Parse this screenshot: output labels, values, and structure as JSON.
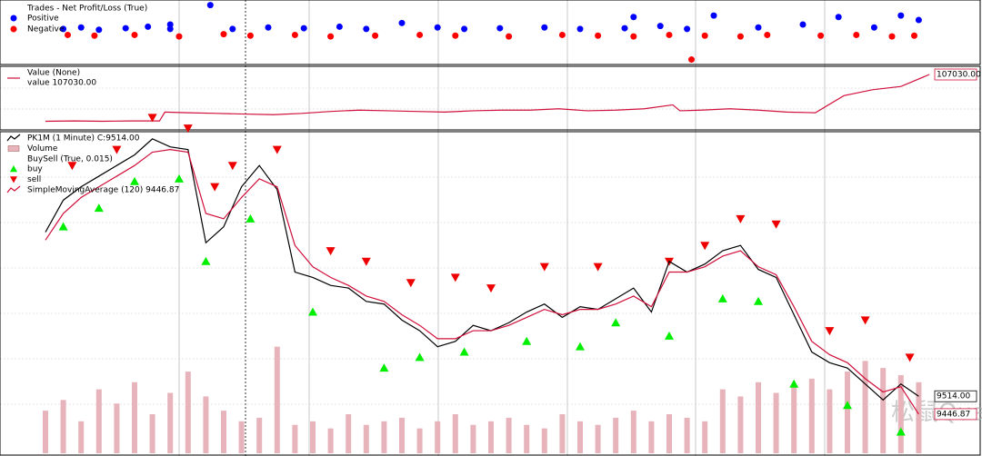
{
  "chart_data": [
    {
      "type": "scatter",
      "legend_title": "Trades - Net Profit/Loss (True)",
      "xlim": [
        0,
        1000
      ],
      "ylim": [
        -190,
        200
      ],
      "series": [
        {
          "name": "Positive",
          "color": "#0000ff",
          "x": [
            20,
            40,
            60,
            90,
            115,
            140,
            140,
            185,
            210,
            250,
            290,
            330,
            360,
            400,
            440,
            470,
            510,
            560,
            600,
            650,
            660,
            690,
            720,
            750,
            800,
            850,
            890,
            930,
            960,
            980
          ],
          "values": [
            30,
            40,
            25,
            35,
            45,
            30,
            60,
            190,
            30,
            40,
            35,
            45,
            30,
            70,
            40,
            30,
            35,
            40,
            30,
            35,
            110,
            50,
            30,
            120,
            40,
            60,
            110,
            40,
            120,
            90
          ]
        },
        {
          "name": "Negative",
          "color": "#ff0000",
          "x": [
            25,
            55,
            100,
            150,
            200,
            230,
            280,
            320,
            370,
            420,
            460,
            520,
            580,
            620,
            660,
            700,
            725,
            740,
            780,
            810,
            870,
            910,
            950,
            975
          ],
          "values": [
            -10,
            -15,
            -10,
            -20,
            -5,
            -15,
            -10,
            -20,
            -15,
            -10,
            -15,
            -20,
            -10,
            -15,
            -20,
            -10,
            -175,
            -15,
            -20,
            -10,
            -15,
            -10,
            -20,
            -15
          ]
        }
      ]
    },
    {
      "type": "line",
      "legend_title": "Value (None)",
      "legend_value": "value 107030.00",
      "value_label": "107030.00",
      "xlim": [
        0,
        1000
      ],
      "ylim": [
        99000,
        108000
      ],
      "series": [
        {
          "name": "value",
          "color": "#d0103a",
          "x": [
            0,
            32,
            64,
            96,
            128,
            134,
            160,
            192,
            224,
            256,
            288,
            320,
            352,
            384,
            416,
            448,
            480,
            512,
            544,
            576,
            608,
            640,
            672,
            704,
            712,
            736,
            768,
            800,
            832,
            864,
            896,
            928,
            960,
            992
          ],
          "values": [
            99900,
            99950,
            99900,
            99950,
            99950,
            101300,
            101200,
            101100,
            101000,
            100900,
            101100,
            101400,
            101600,
            101500,
            101400,
            101300,
            101500,
            101600,
            101600,
            101800,
            101500,
            101600,
            101800,
            102400,
            101500,
            101600,
            101800,
            101600,
            101300,
            101200,
            103800,
            104700,
            105200,
            107030
          ]
        }
      ]
    },
    {
      "type": "line",
      "xlim": [
        0,
        1000
      ],
      "ylim": [
        9300,
        10500
      ],
      "y2lim": [
        0,
        900
      ],
      "watermark": "松鼠Quant",
      "series": [
        {
          "name": "PK1M (1 Minute) C:9514.00",
          "color": "#000000",
          "last_label": "9514.00",
          "x": [
            0,
            20,
            40,
            60,
            80,
            100,
            120,
            140,
            160,
            180,
            200,
            220,
            240,
            260,
            280,
            300,
            320,
            340,
            360,
            380,
            400,
            420,
            440,
            460,
            480,
            500,
            520,
            540,
            560,
            580,
            600,
            620,
            640,
            660,
            680,
            700,
            720,
            740,
            760,
            780,
            800,
            820,
            840,
            860,
            880,
            900,
            920,
            940,
            960,
            980
          ],
          "values": [
            10130,
            10250,
            10300,
            10340,
            10380,
            10420,
            10480,
            10450,
            10440,
            10090,
            10150,
            10300,
            10380,
            10290,
            9980,
            9960,
            9930,
            9920,
            9870,
            9860,
            9800,
            9760,
            9700,
            9720,
            9780,
            9760,
            9790,
            9830,
            9860,
            9810,
            9850,
            9840,
            9880,
            9920,
            9830,
            10020,
            9980,
            10010,
            10060,
            10080,
            9990,
            9960,
            9820,
            9680,
            9640,
            9620,
            9560,
            9500,
            9560,
            9514
          ]
        },
        {
          "name": "Volume",
          "color": "#e8b4bc",
          "axis": "y2",
          "x": [
            0,
            20,
            40,
            60,
            80,
            100,
            120,
            140,
            160,
            180,
            200,
            220,
            240,
            260,
            280,
            300,
            320,
            340,
            360,
            380,
            400,
            420,
            440,
            460,
            480,
            500,
            520,
            540,
            560,
            580,
            600,
            620,
            640,
            660,
            680,
            700,
            720,
            740,
            760,
            780,
            800,
            820,
            840,
            860,
            880,
            900,
            920,
            940,
            960,
            980
          ],
          "values": [
            120,
            150,
            90,
            180,
            140,
            200,
            110,
            170,
            230,
            160,
            120,
            90,
            100,
            300,
            80,
            90,
            70,
            110,
            80,
            90,
            100,
            70,
            90,
            110,
            80,
            90,
            100,
            80,
            70,
            110,
            90,
            80,
            100,
            120,
            90,
            110,
            100,
            90,
            180,
            160,
            200,
            170,
            190,
            210,
            180,
            230,
            260,
            240,
            220,
            200
          ]
        },
        {
          "name": "buy",
          "color": "#00ee00",
          "marker": "up",
          "group_label": "BuySell (True, 0.015)",
          "x": [
            20,
            60,
            100,
            150,
            180,
            230,
            300,
            380,
            420,
            470,
            540,
            600,
            640,
            700,
            760,
            800,
            840,
            900,
            960
          ],
          "values": [
            10150,
            10220,
            10320,
            10330,
            10020,
            10180,
            9830,
            9620,
            9660,
            9680,
            9720,
            9700,
            9790,
            9740,
            9880,
            9870,
            9560,
            9480,
            9380
          ]
        },
        {
          "name": "sell",
          "color": "#ee0000",
          "marker": "down",
          "x": [
            30,
            80,
            120,
            160,
            190,
            210,
            260,
            320,
            360,
            410,
            460,
            500,
            560,
            620,
            700,
            740,
            780,
            820,
            880,
            920,
            970
          ],
          "values": [
            10380,
            10440,
            10560,
            10520,
            10300,
            10380,
            10440,
            10060,
            10020,
            9940,
            9960,
            9920,
            10000,
            10000,
            10020,
            10080,
            10180,
            10160,
            9760,
            9800,
            9660
          ]
        },
        {
          "name": "SimpleMovingAverage (120) 9446.87",
          "color": "#d0103a",
          "x": [
            0,
            20,
            40,
            60,
            80,
            100,
            120,
            140,
            160,
            180,
            200,
            220,
            240,
            260,
            280,
            300,
            320,
            340,
            360,
            380,
            400,
            420,
            440,
            460,
            480,
            500,
            520,
            540,
            560,
            580,
            600,
            620,
            640,
            660,
            680,
            700,
            720,
            740,
            760,
            780,
            800,
            820,
            840,
            860,
            880,
            900,
            920,
            940,
            960,
            980
          ],
          "values": [
            10100,
            10200,
            10260,
            10300,
            10340,
            10380,
            10430,
            10440,
            10430,
            10200,
            10180,
            10260,
            10330,
            10300,
            10080,
            10000,
            9960,
            9930,
            9890,
            9870,
            9820,
            9780,
            9730,
            9730,
            9760,
            9760,
            9780,
            9810,
            9840,
            9820,
            9840,
            9840,
            9860,
            9890,
            9850,
            9980,
            9980,
            10000,
            10040,
            10060,
            10000,
            9970,
            9850,
            9720,
            9670,
            9640,
            9580,
            9530,
            9550,
            9446.87
          ]
        }
      ]
    }
  ]
}
